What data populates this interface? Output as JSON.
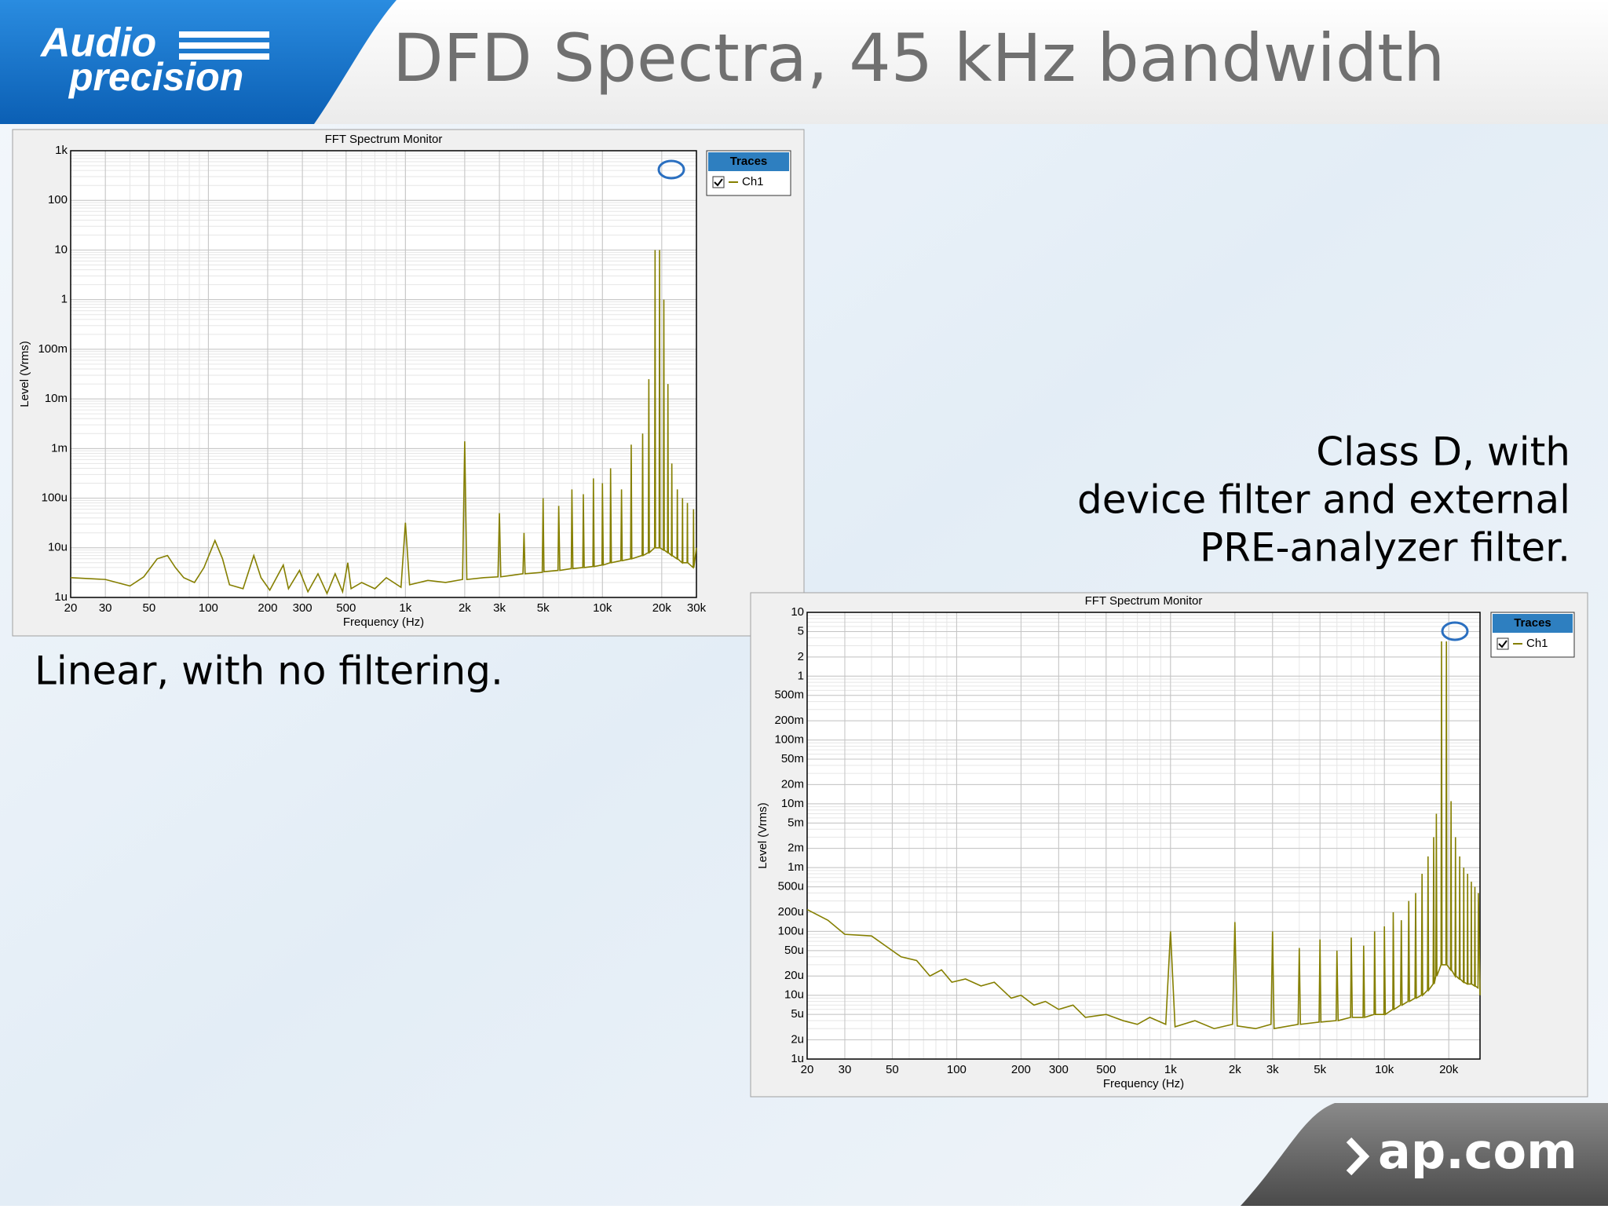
{
  "slide": {
    "title": "DFD Spectra, 45 kHz bandwidth",
    "logo": [
      "Audio",
      "precision"
    ],
    "left_caption": "Linear, with no filtering.",
    "right_caption": [
      "Class D, with",
      "device filter and external",
      "PRE-analyzer filter."
    ],
    "footer": "ap.com"
  },
  "chart_data": [
    {
      "type": "line",
      "title": "FFT Spectrum Monitor",
      "x_label": "Frequency (Hz)",
      "y_label": "Level (Vrms)",
      "xscale": "log",
      "yscale": "log",
      "grid": true,
      "legend_title": "Traces",
      "xlim": [
        20,
        30000
      ],
      "ylim": [
        1e-06,
        1000
      ],
      "xticks": [
        20,
        30,
        50,
        100,
        200,
        300,
        500,
        {
          "value": 1000,
          "label": "1k"
        },
        {
          "value": 2000,
          "label": "2k"
        },
        {
          "value": 3000,
          "label": "3k"
        },
        {
          "value": 5000,
          "label": "5k"
        },
        {
          "value": 10000,
          "label": "10k"
        },
        {
          "value": 20000,
          "label": "20k"
        },
        {
          "value": 30000,
          "label": "30k"
        }
      ],
      "yticks": [
        {
          "value": 1e-06,
          "label": "1u"
        },
        {
          "value": 1e-05,
          "label": "10u"
        },
        {
          "value": 0.0001,
          "label": "100u"
        },
        {
          "value": 0.001,
          "label": "1m"
        },
        {
          "value": 0.01,
          "label": "10m"
        },
        {
          "value": 0.1,
          "label": "100m"
        },
        1,
        10,
        100,
        {
          "value": 1000,
          "label": "1k"
        }
      ],
      "x": [
        20,
        30,
        40,
        47,
        55,
        62,
        68,
        75,
        85,
        95,
        108,
        118,
        128,
        150,
        170,
        185,
        205,
        240,
        255,
        290,
        320,
        360,
        400,
        440,
        480,
        510,
        530,
        600,
        700,
        800,
        950,
        1000,
        1050,
        1300,
        1600,
        1950,
        2000,
        2050,
        2500,
        2950,
        3000,
        3050,
        3500,
        3950,
        4000,
        4050,
        4950,
        5000,
        5050,
        5950,
        6000,
        6080,
        6950,
        7000,
        7080,
        7950,
        8000,
        8080,
        8950,
        9000,
        9080,
        9950,
        10000,
        10100,
        10950,
        11000,
        11100,
        12400,
        12500,
        12600,
        13900,
        14000,
        14100,
        15900,
        16000,
        16100,
        17100,
        17200,
        17300,
        18400,
        18500,
        18600,
        19400,
        19500,
        19600,
        20400,
        20500,
        20600,
        21400,
        21500,
        21600,
        22400,
        22500,
        22600,
        23900,
        24000,
        24100,
        25400,
        25500,
        25600,
        26900,
        27000,
        27100,
        28900,
        29000,
        29100,
        30000
      ],
      "series": [
        {
          "name": "Ch1",
          "color": "#857f00",
          "values": [
            2.5e-06,
            2.3e-06,
            1.7e-06,
            2.6e-06,
            6e-06,
            7e-06,
            4e-06,
            2.5e-06,
            2e-06,
            4e-06,
            1.4e-05,
            6e-06,
            1.8e-06,
            1.5e-06,
            7e-06,
            2.5e-06,
            1.4e-06,
            4.5e-06,
            1.5e-06,
            3.5e-06,
            1.3e-06,
            3e-06,
            1.2e-06,
            3e-06,
            1.3e-06,
            5e-06,
            1.5e-06,
            2e-06,
            1.5e-06,
            2.5e-06,
            1.6e-06,
            3.2e-05,
            1.8e-06,
            2.2e-06,
            2e-06,
            2.3e-06,
            0.0014,
            2.3e-06,
            2.5e-06,
            2.6e-06,
            5e-05,
            2.6e-06,
            2.8e-06,
            3e-06,
            2e-05,
            3e-06,
            3.2e-06,
            0.0001,
            3.3e-06,
            3.5e-06,
            7e-05,
            3.5e-06,
            3.8e-06,
            0.00015,
            3.8e-06,
            4e-06,
            0.00012,
            4e-06,
            4.2e-06,
            0.00025,
            4.2e-06,
            4.5e-06,
            0.0002,
            4.5e-06,
            5e-06,
            0.0004,
            5e-06,
            5.5e-06,
            0.00015,
            5.5e-06,
            6e-06,
            0.0012,
            6e-06,
            7e-06,
            0.002,
            7e-06,
            8e-06,
            0.025,
            8e-06,
            1e-05,
            10,
            1e-05,
            1e-05,
            10,
            1e-05,
            9e-06,
            1,
            9e-06,
            8e-06,
            0.02,
            8e-06,
            7e-06,
            0.0005,
            7e-06,
            6e-06,
            0.00015,
            6e-06,
            5e-06,
            0.0001,
            5e-06,
            5e-06,
            8e-05,
            5e-06,
            4e-06,
            6e-05,
            4e-06,
            1e-05
          ]
        }
      ]
    },
    {
      "type": "line",
      "title": "FFT Spectrum Monitor",
      "x_label": "Frequency (Hz)",
      "y_label": "Level (Vrms)",
      "xscale": "log",
      "yscale": "log",
      "grid": true,
      "legend_title": "Traces",
      "xlim": [
        20,
        28000
      ],
      "ylim": [
        1e-06,
        10
      ],
      "xticks": [
        20,
        30,
        50,
        100,
        200,
        300,
        500,
        {
          "value": 1000,
          "label": "1k"
        },
        {
          "value": 2000,
          "label": "2k"
        },
        {
          "value": 3000,
          "label": "3k"
        },
        {
          "value": 5000,
          "label": "5k"
        },
        {
          "value": 10000,
          "label": "10k"
        },
        {
          "value": 20000,
          "label": "20k"
        }
      ],
      "yticks": [
        {
          "value": 1e-06,
          "label": "1u"
        },
        {
          "value": 2e-06,
          "label": "2u"
        },
        {
          "value": 5e-06,
          "label": "5u"
        },
        {
          "value": 1e-05,
          "label": "10u"
        },
        {
          "value": 2e-05,
          "label": "20u"
        },
        {
          "value": 5e-05,
          "label": "50u"
        },
        {
          "value": 0.0001,
          "label": "100u"
        },
        {
          "value": 0.0002,
          "label": "200u"
        },
        {
          "value": 0.0005,
          "label": "500u"
        },
        {
          "value": 0.001,
          "label": "1m"
        },
        {
          "value": 0.002,
          "label": "2m"
        },
        {
          "value": 0.005,
          "label": "5m"
        },
        {
          "value": 0.01,
          "label": "10m"
        },
        {
          "value": 0.02,
          "label": "20m"
        },
        {
          "value": 0.05,
          "label": "50m"
        },
        {
          "value": 0.1,
          "label": "100m"
        },
        {
          "value": 0.2,
          "label": "200m"
        },
        {
          "value": 0.5,
          "label": "500m"
        },
        1,
        2,
        5,
        10
      ],
      "x": [
        20,
        25,
        30,
        40,
        50,
        55,
        65,
        75,
        85,
        95,
        110,
        130,
        150,
        180,
        200,
        230,
        260,
        300,
        350,
        400,
        500,
        600,
        700,
        800,
        950,
        1000,
        1050,
        1300,
        1600,
        1950,
        2000,
        2050,
        2500,
        2950,
        3000,
        3050,
        3950,
        4000,
        4050,
        4950,
        5000,
        5050,
        5950,
        6000,
        6080,
        6950,
        7000,
        7080,
        7950,
        8000,
        8080,
        8950,
        9000,
        9080,
        9950,
        10000,
        10100,
        10950,
        11000,
        11100,
        11900,
        12000,
        12100,
        12900,
        13000,
        13100,
        13900,
        14000,
        14100,
        14900,
        15000,
        15100,
        15900,
        16000,
        16100,
        16900,
        17000,
        17100,
        17400,
        17500,
        17600,
        18400,
        18500,
        18600,
        19400,
        19500,
        19600,
        20400,
        20500,
        20600,
        21400,
        21500,
        21600,
        22400,
        22500,
        22600,
        23400,
        23500,
        23600,
        24400,
        24500,
        24600,
        25400,
        25500,
        25600,
        26400,
        26500,
        26600,
        27400,
        27500,
        28000
      ],
      "series": [
        {
          "name": "Ch1",
          "color": "#857f00",
          "values": [
            0.00022,
            0.00015,
            9e-05,
            8.5e-05,
            5e-05,
            4e-05,
            3.5e-05,
            2e-05,
            2.5e-05,
            1.6e-05,
            1.8e-05,
            1.4e-05,
            1.6e-05,
            9e-06,
            1e-05,
            7e-06,
            8e-06,
            6e-06,
            7e-06,
            4.5e-06,
            5e-06,
            4e-06,
            3.5e-06,
            4.5e-06,
            3.5e-06,
            0.0001,
            3.2e-06,
            4e-06,
            3e-06,
            3.5e-06,
            0.00014,
            3.3e-06,
            3e-06,
            3.5e-06,
            0.0001,
            3e-06,
            3.5e-06,
            5.5e-05,
            3.5e-06,
            3.8e-06,
            7.5e-05,
            3.8e-06,
            4e-06,
            5e-05,
            4e-06,
            4.5e-06,
            8e-05,
            4.5e-06,
            4.5e-06,
            6e-05,
            4.5e-06,
            5e-06,
            0.0001,
            5e-06,
            5e-06,
            0.00012,
            5e-06,
            6e-06,
            0.0002,
            6e-06,
            7e-06,
            0.00015,
            7e-06,
            8e-06,
            0.0003,
            8e-06,
            9e-06,
            0.0004,
            9e-06,
            1e-05,
            0.0008,
            1e-05,
            1.2e-05,
            0.0015,
            1.2e-05,
            1.5e-05,
            0.003,
            1.5e-05,
            2e-05,
            0.007,
            2e-05,
            3e-05,
            3.5,
            3e-05,
            3e-05,
            3.5,
            3e-05,
            2.5e-05,
            0.011,
            2.5e-05,
            2e-05,
            0.003,
            2e-05,
            1.8e-05,
            0.0015,
            1.8e-05,
            1.6e-05,
            0.001,
            1.6e-05,
            1.5e-05,
            0.0008,
            1.5e-05,
            1.5e-05,
            0.0006,
            1.5e-05,
            1.4e-05,
            0.0005,
            1.4e-05,
            1.3e-05,
            0.0004,
            1e-05
          ]
        }
      ]
    }
  ]
}
